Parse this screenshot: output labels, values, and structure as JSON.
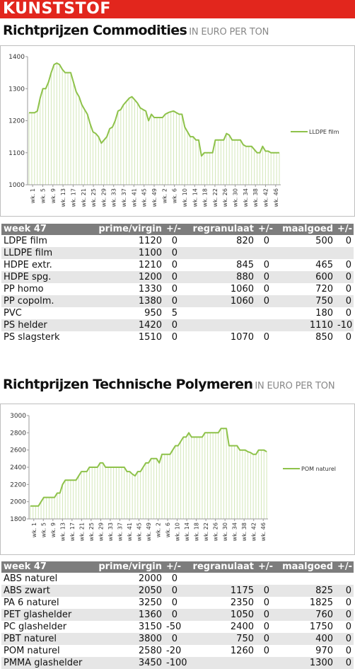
{
  "banner": "KUNSTSTOF",
  "section1": {
    "title": "Richtprijzen Commodities",
    "subtitle": "IN EURO PER TON"
  },
  "section2": {
    "title": "Richtprijzen Technische Polymeren",
    "subtitle": "IN EURO PER TON"
  },
  "colors": {
    "banner": "#e2261d",
    "series": "#8ec24a",
    "header": "#7d7d7d"
  },
  "chart_data": [
    {
      "type": "line",
      "series": [
        {
          "name": "LLDPE film",
          "values": [
            1225,
            1225,
            1225,
            1230,
            1270,
            1300,
            1300,
            1320,
            1350,
            1375,
            1380,
            1375,
            1360,
            1350,
            1350,
            1350,
            1320,
            1290,
            1275,
            1250,
            1235,
            1220,
            1190,
            1165,
            1160,
            1150,
            1130,
            1140,
            1150,
            1175,
            1180,
            1200,
            1230,
            1235,
            1250,
            1260,
            1270,
            1275,
            1265,
            1255,
            1240,
            1235,
            1230,
            1200,
            1220,
            1210,
            1210,
            1210,
            1210,
            1220,
            1225,
            1228,
            1230,
            1225,
            1220,
            1220,
            1180,
            1165,
            1150,
            1150,
            1140,
            1140,
            1090,
            1100,
            1100,
            1100,
            1100,
            1140,
            1140,
            1140,
            1140,
            1160,
            1155,
            1140,
            1140,
            1140,
            1140,
            1125,
            1120,
            1120,
            1120,
            1110,
            1100,
            1100,
            1120,
            1105,
            1105,
            1100,
            1100,
            1100,
            1100
          ]
        }
      ],
      "x_ticks": [
        "wk. 1",
        "wk. 5",
        "wk. 9",
        "wk. 13",
        "wk. 17",
        "wk. 21",
        "wk. 25",
        "wk. 29",
        "wk. 33",
        "wk. 37",
        "wk. 41",
        "wk. 45",
        "wk. 49",
        "wk. 2",
        "wk. 6",
        "wk. 10",
        "wk. 14",
        "wk. 18",
        "wk. 22",
        "wk. 26",
        "wk. 30",
        "wk. 34",
        "wk. 38",
        "wk. 42",
        "wk. 46"
      ],
      "y_ticks": [
        "1000",
        "1100",
        "1200",
        "1300",
        "1400"
      ],
      "ylim": [
        1000,
        1400
      ],
      "legend": "right"
    },
    {
      "type": "line",
      "series": [
        {
          "name": "POM naturel",
          "values": [
            1950,
            1950,
            1950,
            1950,
            2000,
            2050,
            2050,
            2050,
            2050,
            2050,
            2100,
            2100,
            2200,
            2250,
            2250,
            2250,
            2250,
            2250,
            2300,
            2350,
            2350,
            2350,
            2400,
            2400,
            2400,
            2400,
            2450,
            2450,
            2400,
            2400,
            2400,
            2400,
            2400,
            2400,
            2400,
            2400,
            2350,
            2350,
            2320,
            2300,
            2350,
            2350,
            2400,
            2450,
            2450,
            2500,
            2500,
            2500,
            2450,
            2550,
            2550,
            2550,
            2550,
            2600,
            2650,
            2650,
            2700,
            2750,
            2750,
            2800,
            2750,
            2750,
            2750,
            2750,
            2750,
            2800,
            2800,
            2800,
            2800,
            2800,
            2800,
            2850,
            2850,
            2850,
            2650,
            2650,
            2650,
            2650,
            2600,
            2600,
            2600,
            2580,
            2570,
            2550,
            2550,
            2600,
            2600,
            2600,
            2580
          ]
        }
      ],
      "x_ticks": [
        "wk. 1",
        "wk. 5",
        "wk. 9",
        "wk. 13",
        "wk. 17",
        "wk. 21",
        "wk. 25",
        "wk. 29",
        "wk. 33",
        "wk. 37",
        "wk. 41",
        "wk. 45",
        "wk. 49",
        "wk. 2",
        "wk. 6",
        "wk. 10",
        "wk. 14",
        "wk. 18",
        "wk. 22",
        "wk. 26",
        "wk. 30",
        "wk. 34",
        "wk. 38",
        "wk. 42",
        "wk. 46"
      ],
      "y_ticks": [
        "1800",
        "2000",
        "2200",
        "2400",
        "2600",
        "2800",
        "3000"
      ],
      "ylim": [
        1800,
        3000
      ],
      "legend": "right"
    }
  ],
  "table1": {
    "headers": [
      "week 47",
      "prime/virgin",
      "+/-",
      "regranulaat",
      "+/-",
      "maalgoed",
      "+/-"
    ],
    "rows": [
      [
        "LDPE film",
        "1120",
        "0",
        "820",
        "0",
        "500",
        "0"
      ],
      [
        "LLDPE film",
        "1100",
        "0",
        "",
        "",
        "",
        ""
      ],
      [
        "HDPE extr.",
        "1210",
        "0",
        "845",
        "0",
        "465",
        "0"
      ],
      [
        "HDPE spg.",
        "1200",
        "0",
        "880",
        "0",
        "600",
        "0"
      ],
      [
        "PP homo",
        "1330",
        "0",
        "1060",
        "0",
        "720",
        "0"
      ],
      [
        "PP copolm.",
        "1380",
        "0",
        "1060",
        "0",
        "750",
        "0"
      ],
      [
        "PVC",
        "950",
        "5",
        "",
        "",
        "180",
        "0"
      ],
      [
        "PS helder",
        "1420",
        "0",
        "",
        "",
        "1110",
        "-10"
      ],
      [
        "PS slagsterk",
        "1510",
        "0",
        "1070",
        "0",
        "850",
        "0"
      ]
    ]
  },
  "table2": {
    "headers": [
      "week 47",
      "prime/virgin",
      "+/-",
      "regranulaat",
      "+/-",
      "maalgoed",
      "+/-"
    ],
    "rows": [
      [
        "ABS naturel",
        "2000",
        "0",
        "",
        "",
        "",
        ""
      ],
      [
        "ABS zwart",
        "2050",
        "0",
        "1175",
        "0",
        "825",
        "0"
      ],
      [
        "PA 6 naturel",
        "3250",
        "0",
        "2350",
        "0",
        "1825",
        "0"
      ],
      [
        "PET glashelder",
        "1360",
        "0",
        "1050",
        "0",
        "760",
        "0"
      ],
      [
        "PC glashelder",
        "3150",
        "-50",
        "2400",
        "0",
        "1750",
        "0"
      ],
      [
        "PBT naturel",
        "3800",
        "0",
        "750",
        "0",
        "400",
        "0"
      ],
      [
        "POM naturel",
        "2580",
        "-20",
        "1260",
        "0",
        "970",
        "0"
      ],
      [
        "PMMA glashelder",
        "3450",
        "-100",
        "",
        "",
        "1300",
        "0"
      ]
    ]
  }
}
